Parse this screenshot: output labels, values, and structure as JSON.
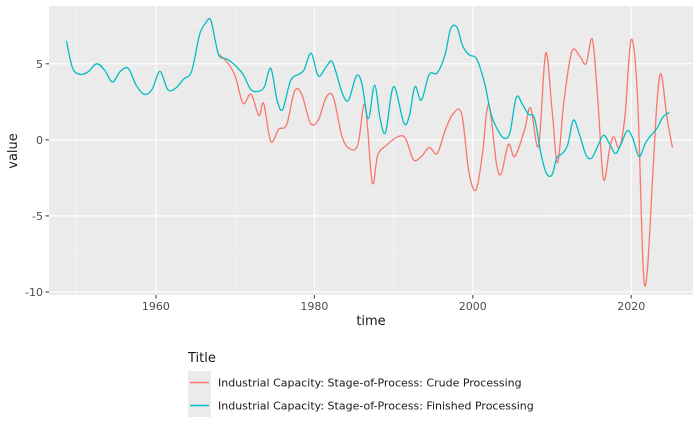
{
  "chart_data": {
    "type": "line",
    "xlabel": "time",
    "ylabel": "value",
    "xlim": [
      1946.5,
      2027.8
    ],
    "ylim": [
      -10.2,
      8.8
    ],
    "x_ticks": [
      1960,
      1980,
      2000,
      2020
    ],
    "y_ticks": [
      -10,
      -5,
      0,
      5
    ],
    "x_tick_labels": [
      "1960",
      "1980",
      "2000",
      "2020"
    ],
    "y_tick_labels": [
      "-10",
      "-5",
      "0",
      "5"
    ],
    "grid": true,
    "legend": {
      "title": "Title",
      "position": "bottom"
    },
    "series": [
      {
        "name": "Industrial Capacity: Stage-of-Process: Crude Processing",
        "color": "#F8766D",
        "points": [
          [
            1968.0,
            5.6
          ],
          [
            1969.0,
            5.1
          ],
          [
            1970.0,
            4.2
          ],
          [
            1971.0,
            2.4
          ],
          [
            1972.0,
            3.0
          ],
          [
            1973.0,
            1.6
          ],
          [
            1973.6,
            2.4
          ],
          [
            1974.5,
            -0.1
          ],
          [
            1975.5,
            0.7
          ],
          [
            1976.5,
            1.0
          ],
          [
            1977.5,
            3.2
          ],
          [
            1978.4,
            3.0
          ],
          [
            1979.5,
            1.1
          ],
          [
            1980.5,
            1.3
          ],
          [
            1981.5,
            2.8
          ],
          [
            1982.4,
            2.8
          ],
          [
            1983.5,
            0.2
          ],
          [
            1984.5,
            -0.6
          ],
          [
            1985.5,
            -0.3
          ],
          [
            1986.4,
            2.3
          ],
          [
            1987.3,
            -2.8
          ],
          [
            1988.0,
            -1.0
          ],
          [
            1989.0,
            -0.4
          ],
          [
            1990.5,
            0.2
          ],
          [
            1991.5,
            0.1
          ],
          [
            1992.5,
            -1.3
          ],
          [
            1993.5,
            -1.1
          ],
          [
            1994.5,
            -0.5
          ],
          [
            1995.5,
            -0.9
          ],
          [
            1996.5,
            0.6
          ],
          [
            1997.5,
            1.7
          ],
          [
            1998.6,
            1.7
          ],
          [
            1999.5,
            -2.1
          ],
          [
            2000.4,
            -3.3
          ],
          [
            2001.2,
            -1.0
          ],
          [
            2002.0,
            2.3
          ],
          [
            2003.0,
            -1.6
          ],
          [
            2003.6,
            -2.2
          ],
          [
            2004.5,
            -0.3
          ],
          [
            2005.3,
            -1.1
          ],
          [
            2006.5,
            0.6
          ],
          [
            2007.3,
            2.1
          ],
          [
            2008.3,
            -0.4
          ],
          [
            2009.2,
            5.7
          ],
          [
            2010.0,
            2.0
          ],
          [
            2010.7,
            -1.5
          ],
          [
            2011.5,
            2.5
          ],
          [
            2012.5,
            5.8
          ],
          [
            2013.5,
            5.5
          ],
          [
            2014.3,
            5.0
          ],
          [
            2015.1,
            6.6
          ],
          [
            2015.8,
            2.5
          ],
          [
            2016.5,
            -2.6
          ],
          [
            2017.3,
            -0.5
          ],
          [
            2017.8,
            0.2
          ],
          [
            2018.5,
            -0.5
          ],
          [
            2019.2,
            1.5
          ],
          [
            2020.0,
            6.6
          ],
          [
            2020.8,
            2.8
          ],
          [
            2021.5,
            -8.3
          ],
          [
            2022.0,
            -8.8
          ],
          [
            2022.7,
            -2.5
          ],
          [
            2023.3,
            2.8
          ],
          [
            2023.8,
            4.3
          ],
          [
            2024.5,
            1.5
          ],
          [
            2025.2,
            -0.5
          ]
        ]
      },
      {
        "name": "Industrial Capacity: Stage-of-Process: Finished Processing",
        "color": "#00BFC4",
        "points": [
          [
            1948.7,
            6.5
          ],
          [
            1949.5,
            4.7
          ],
          [
            1950.5,
            4.3
          ],
          [
            1951.5,
            4.5
          ],
          [
            1952.5,
            5.0
          ],
          [
            1953.5,
            4.6
          ],
          [
            1954.5,
            3.8
          ],
          [
            1955.5,
            4.5
          ],
          [
            1956.5,
            4.7
          ],
          [
            1957.5,
            3.6
          ],
          [
            1958.5,
            3.0
          ],
          [
            1959.5,
            3.3
          ],
          [
            1960.5,
            4.5
          ],
          [
            1961.5,
            3.3
          ],
          [
            1962.5,
            3.4
          ],
          [
            1963.5,
            4.0
          ],
          [
            1964.5,
            4.5
          ],
          [
            1965.5,
            6.9
          ],
          [
            1966.3,
            7.7
          ],
          [
            1966.9,
            7.9
          ],
          [
            1967.5,
            6.5
          ],
          [
            1968.0,
            5.5
          ],
          [
            1969.0,
            5.3
          ],
          [
            1970.0,
            4.9
          ],
          [
            1971.0,
            4.3
          ],
          [
            1972.0,
            3.3
          ],
          [
            1973.0,
            3.2
          ],
          [
            1973.7,
            3.5
          ],
          [
            1974.5,
            4.7
          ],
          [
            1975.3,
            2.6
          ],
          [
            1976.0,
            2.0
          ],
          [
            1977.0,
            3.9
          ],
          [
            1978.0,
            4.3
          ],
          [
            1978.7,
            4.6
          ],
          [
            1979.6,
            5.7
          ],
          [
            1980.5,
            4.2
          ],
          [
            1981.5,
            4.8
          ],
          [
            1982.3,
            5.1
          ],
          [
            1983.5,
            3.1
          ],
          [
            1984.3,
            2.6
          ],
          [
            1985.3,
            4.2
          ],
          [
            1986.0,
            3.7
          ],
          [
            1986.8,
            1.4
          ],
          [
            1987.6,
            3.6
          ],
          [
            1988.3,
            1.4
          ],
          [
            1989.0,
            0.5
          ],
          [
            1990.0,
            3.5
          ],
          [
            1991.3,
            1.1
          ],
          [
            1992.0,
            1.6
          ],
          [
            1992.7,
            3.5
          ],
          [
            1993.5,
            2.6
          ],
          [
            1994.5,
            4.3
          ],
          [
            1995.5,
            4.4
          ],
          [
            1996.5,
            5.6
          ],
          [
            1997.2,
            7.3
          ],
          [
            1998.0,
            7.4
          ],
          [
            1998.7,
            6.2
          ],
          [
            1999.5,
            5.6
          ],
          [
            2000.5,
            5.3
          ],
          [
            2001.5,
            3.7
          ],
          [
            2002.3,
            1.7
          ],
          [
            2003.2,
            0.6
          ],
          [
            2004.0,
            0.1
          ],
          [
            2004.7,
            0.5
          ],
          [
            2005.5,
            2.8
          ],
          [
            2006.3,
            2.3
          ],
          [
            2007.0,
            1.7
          ],
          [
            2007.8,
            1.4
          ],
          [
            2008.6,
            -0.9
          ],
          [
            2009.3,
            -2.2
          ],
          [
            2010.0,
            -2.3
          ],
          [
            2010.6,
            -1.2
          ],
          [
            2011.3,
            -0.9
          ],
          [
            2012.0,
            -0.3
          ],
          [
            2012.7,
            1.3
          ],
          [
            2013.5,
            0.3
          ],
          [
            2014.3,
            -1.0
          ],
          [
            2015.0,
            -1.2
          ],
          [
            2015.7,
            -0.5
          ],
          [
            2016.5,
            0.3
          ],
          [
            2017.3,
            -0.3
          ],
          [
            2018.0,
            -0.9
          ],
          [
            2018.7,
            -0.3
          ],
          [
            2019.5,
            0.6
          ],
          [
            2020.2,
            0.1
          ],
          [
            2021.0,
            -1.1
          ],
          [
            2021.8,
            -0.2
          ],
          [
            2022.5,
            0.3
          ],
          [
            2023.3,
            0.8
          ],
          [
            2024.0,
            1.5
          ],
          [
            2024.8,
            1.8
          ]
        ]
      }
    ]
  }
}
